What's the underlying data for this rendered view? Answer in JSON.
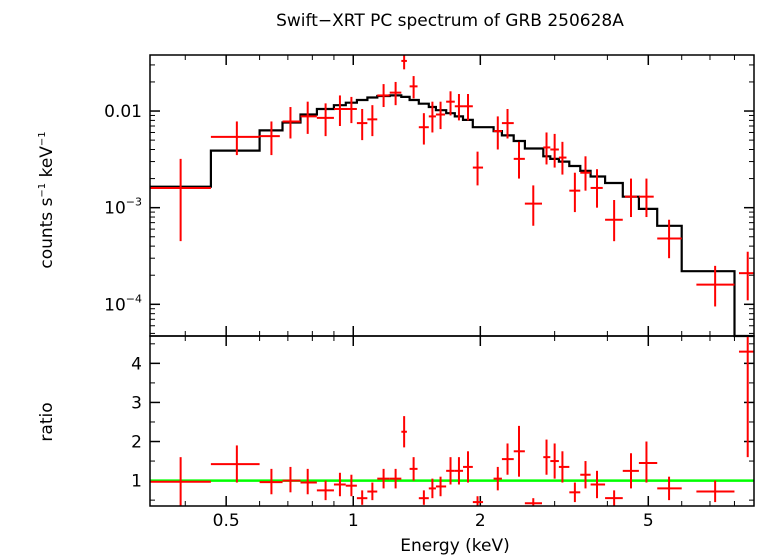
{
  "chart_data": {
    "type": "scatter",
    "title": "Swift−XRT PC spectrum of GRB 250628A",
    "xlabel": "Energy (keV)",
    "x_scale": "log",
    "xlim": [
      0.33,
      8.9
    ],
    "x_ticks": [
      {
        "value": 0.5,
        "label": "0.5"
      },
      {
        "value": 1,
        "label": "1"
      },
      {
        "value": 2,
        "label": "2"
      },
      {
        "value": 5,
        "label": "5"
      }
    ],
    "colors": {
      "data": "#ff0000",
      "model": "#000000",
      "unity": "#00ff00",
      "axes": "#000000"
    },
    "panels": [
      {
        "name": "spectrum",
        "ylabel_main": "counts s",
        "ylabel_exp1": "−1",
        "ylabel_mid": " keV",
        "ylabel_exp2": "−1",
        "y_scale": "log",
        "ylim": [
          4.7e-05,
          0.038
        ],
        "y_ticks": [
          {
            "value": 0.01,
            "label": "0.01"
          },
          {
            "value": 0.001,
            "label_base": "10",
            "label_exp": "−3"
          },
          {
            "value": 0.0001,
            "label_base": "10",
            "label_exp": "−4"
          }
        ],
        "data": [
          {
            "x": 0.39,
            "xlo": 0.33,
            "xhi": 0.46,
            "y": 0.0016,
            "ylo": 0.00045,
            "yhi": 0.0032
          },
          {
            "x": 0.53,
            "xlo": 0.46,
            "xhi": 0.6,
            "y": 0.0054,
            "ylo": 0.0035,
            "yhi": 0.0078
          },
          {
            "x": 0.64,
            "xlo": 0.6,
            "xhi": 0.67,
            "y": 0.0055,
            "ylo": 0.0035,
            "yhi": 0.0078
          },
          {
            "x": 0.71,
            "xlo": 0.68,
            "xhi": 0.75,
            "y": 0.0078,
            "ylo": 0.0052,
            "yhi": 0.011
          },
          {
            "x": 0.78,
            "xlo": 0.75,
            "xhi": 0.82,
            "y": 0.0088,
            "ylo": 0.0058,
            "yhi": 0.0125
          },
          {
            "x": 0.86,
            "xlo": 0.82,
            "xhi": 0.9,
            "y": 0.0085,
            "ylo": 0.0055,
            "yhi": 0.012
          },
          {
            "x": 0.93,
            "xlo": 0.9,
            "xhi": 0.97,
            "y": 0.0105,
            "ylo": 0.007,
            "yhi": 0.0145
          },
          {
            "x": 0.99,
            "xlo": 0.96,
            "xhi": 1.02,
            "y": 0.0105,
            "ylo": 0.0075,
            "yhi": 0.014
          },
          {
            "x": 1.05,
            "xlo": 1.02,
            "xhi": 1.08,
            "y": 0.0075,
            "ylo": 0.005,
            "yhi": 0.0105
          },
          {
            "x": 1.11,
            "xlo": 1.08,
            "xhi": 1.14,
            "y": 0.0082,
            "ylo": 0.0055,
            "yhi": 0.0115
          },
          {
            "x": 1.18,
            "xlo": 1.14,
            "xhi": 1.22,
            "y": 0.0145,
            "ylo": 0.011,
            "yhi": 0.019
          },
          {
            "x": 1.26,
            "xlo": 1.22,
            "xhi": 1.3,
            "y": 0.0155,
            "ylo": 0.0115,
            "yhi": 0.02
          },
          {
            "x": 1.32,
            "xlo": 1.3,
            "xhi": 1.34,
            "y": 0.033,
            "ylo": 0.027,
            "yhi": 0.038
          },
          {
            "x": 1.39,
            "xlo": 1.36,
            "xhi": 1.42,
            "y": 0.018,
            "ylo": 0.0135,
            "yhi": 0.023
          },
          {
            "x": 1.47,
            "xlo": 1.43,
            "xhi": 1.51,
            "y": 0.0068,
            "ylo": 0.0045,
            "yhi": 0.0095
          },
          {
            "x": 1.54,
            "xlo": 1.51,
            "xhi": 1.57,
            "y": 0.0088,
            "ylo": 0.006,
            "yhi": 0.0125
          },
          {
            "x": 1.61,
            "xlo": 1.57,
            "xhi": 1.65,
            "y": 0.0092,
            "ylo": 0.0065,
            "yhi": 0.0125
          },
          {
            "x": 1.7,
            "xlo": 1.66,
            "xhi": 1.74,
            "y": 0.0125,
            "ylo": 0.009,
            "yhi": 0.016
          },
          {
            "x": 1.78,
            "xlo": 1.74,
            "xhi": 1.82,
            "y": 0.0112,
            "ylo": 0.008,
            "yhi": 0.015
          },
          {
            "x": 1.87,
            "xlo": 1.82,
            "xhi": 1.92,
            "y": 0.0112,
            "ylo": 0.008,
            "yhi": 0.015
          },
          {
            "x": 1.97,
            "xlo": 1.92,
            "xhi": 2.03,
            "y": 0.0026,
            "ylo": 0.0017,
            "yhi": 0.0038
          },
          {
            "x": 2.2,
            "xlo": 2.15,
            "xhi": 2.25,
            "y": 0.0062,
            "ylo": 0.004,
            "yhi": 0.0088
          },
          {
            "x": 2.32,
            "xlo": 2.25,
            "xhi": 2.4,
            "y": 0.0075,
            "ylo": 0.0052,
            "yhi": 0.0105
          },
          {
            "x": 2.47,
            "xlo": 2.4,
            "xhi": 2.55,
            "y": 0.0032,
            "ylo": 0.002,
            "yhi": 0.0048
          },
          {
            "x": 2.67,
            "xlo": 2.55,
            "xhi": 2.8,
            "y": 0.0011,
            "ylo": 0.00065,
            "yhi": 0.0017
          },
          {
            "x": 2.87,
            "xlo": 2.82,
            "xhi": 2.93,
            "y": 0.0042,
            "ylo": 0.0028,
            "yhi": 0.006
          },
          {
            "x": 3.0,
            "xlo": 2.93,
            "xhi": 3.07,
            "y": 0.004,
            "ylo": 0.0026,
            "yhi": 0.0058
          },
          {
            "x": 3.13,
            "xlo": 3.07,
            "xhi": 3.2,
            "y": 0.0033,
            "ylo": 0.0022,
            "yhi": 0.0048
          },
          {
            "x": 3.35,
            "xlo": 3.25,
            "xhi": 3.45,
            "y": 0.0015,
            "ylo": 0.0009,
            "yhi": 0.0023
          },
          {
            "x": 3.55,
            "xlo": 3.45,
            "xhi": 3.65,
            "y": 0.0023,
            "ylo": 0.0015,
            "yhi": 0.0034
          },
          {
            "x": 3.78,
            "xlo": 3.65,
            "xhi": 3.9,
            "y": 0.0016,
            "ylo": 0.001,
            "yhi": 0.0025
          },
          {
            "x": 4.15,
            "xlo": 3.95,
            "xhi": 4.35,
            "y": 0.00075,
            "ylo": 0.00045,
            "yhi": 0.0012
          },
          {
            "x": 4.55,
            "xlo": 4.4,
            "xhi": 4.7,
            "y": 0.0013,
            "ylo": 0.0008,
            "yhi": 0.002
          },
          {
            "x": 4.95,
            "xlo": 4.75,
            "xhi": 5.15,
            "y": 0.0013,
            "ylo": 0.0008,
            "yhi": 0.002
          },
          {
            "x": 5.6,
            "xlo": 5.25,
            "xhi": 6.0,
            "y": 0.00048,
            "ylo": 0.0003,
            "yhi": 0.00075
          },
          {
            "x": 7.2,
            "xlo": 6.5,
            "xhi": 8.0,
            "y": 0.00016,
            "ylo": 9.5e-05,
            "yhi": 0.00025
          },
          {
            "x": 8.6,
            "xlo": 8.2,
            "xhi": 8.9,
            "y": 0.00021,
            "ylo": 0.00011,
            "yhi": 0.00035
          }
        ],
        "model_steps": [
          {
            "x0": 0.33,
            "x1": 0.46,
            "y": 0.00165
          },
          {
            "x0": 0.46,
            "x1": 0.6,
            "y": 0.0039
          },
          {
            "x0": 0.6,
            "x1": 0.68,
            "y": 0.0063
          },
          {
            "x0": 0.68,
            "x1": 0.75,
            "y": 0.0076
          },
          {
            "x0": 0.75,
            "x1": 0.82,
            "y": 0.0092
          },
          {
            "x0": 0.82,
            "x1": 0.9,
            "y": 0.0105
          },
          {
            "x0": 0.9,
            "x1": 0.96,
            "y": 0.0115
          },
          {
            "x0": 0.96,
            "x1": 1.02,
            "y": 0.0122
          },
          {
            "x0": 1.02,
            "x1": 1.08,
            "y": 0.013
          },
          {
            "x0": 1.08,
            "x1": 1.14,
            "y": 0.0138
          },
          {
            "x0": 1.14,
            "x1": 1.22,
            "y": 0.0143
          },
          {
            "x0": 1.22,
            "x1": 1.3,
            "y": 0.0145
          },
          {
            "x0": 1.3,
            "x1": 1.36,
            "y": 0.014
          },
          {
            "x0": 1.36,
            "x1": 1.43,
            "y": 0.013
          },
          {
            "x0": 1.43,
            "x1": 1.51,
            "y": 0.0119
          },
          {
            "x0": 1.51,
            "x1": 1.57,
            "y": 0.011
          },
          {
            "x0": 1.57,
            "x1": 1.66,
            "y": 0.0102
          },
          {
            "x0": 1.66,
            "x1": 1.74,
            "y": 0.0095
          },
          {
            "x0": 1.74,
            "x1": 1.82,
            "y": 0.0088
          },
          {
            "x0": 1.82,
            "x1": 1.92,
            "y": 0.0081
          },
          {
            "x0": 1.92,
            "x1": 2.15,
            "y": 0.0068
          },
          {
            "x0": 2.15,
            "x1": 2.25,
            "y": 0.0062
          },
          {
            "x0": 2.25,
            "x1": 2.4,
            "y": 0.0056
          },
          {
            "x0": 2.4,
            "x1": 2.55,
            "y": 0.0049
          },
          {
            "x0": 2.55,
            "x1": 2.82,
            "y": 0.0041
          },
          {
            "x0": 2.82,
            "x1": 2.93,
            "y": 0.0034
          },
          {
            "x0": 2.93,
            "x1": 3.07,
            "y": 0.0032
          },
          {
            "x0": 3.07,
            "x1": 3.25,
            "y": 0.003
          },
          {
            "x0": 3.25,
            "x1": 3.45,
            "y": 0.0027
          },
          {
            "x0": 3.45,
            "x1": 3.65,
            "y": 0.0024
          },
          {
            "x0": 3.65,
            "x1": 3.95,
            "y": 0.0021
          },
          {
            "x0": 3.95,
            "x1": 4.35,
            "y": 0.0018
          },
          {
            "x0": 4.35,
            "x1": 4.75,
            "y": 0.0013
          },
          {
            "x0": 4.75,
            "x1": 5.25,
            "y": 0.00097
          },
          {
            "x0": 5.25,
            "x1": 6.0,
            "y": 0.00065
          },
          {
            "x0": 6.0,
            "x1": 8.0,
            "y": 0.00022
          },
          {
            "x0": 8.0,
            "x1": 8.9,
            "y": 4.7e-05
          }
        ]
      },
      {
        "name": "ratio",
        "ylabel": "ratio",
        "y_scale": "linear",
        "ylim": [
          0.35,
          4.7
        ],
        "y_ticks": [
          {
            "value": 1,
            "label": "1"
          },
          {
            "value": 2,
            "label": "2"
          },
          {
            "value": 3,
            "label": "3"
          },
          {
            "value": 4,
            "label": "4"
          }
        ],
        "reference_line": 1,
        "data": [
          {
            "x": 0.39,
            "xlo": 0.33,
            "xhi": 0.46,
            "y": 0.97,
            "ylo": 0.35,
            "yhi": 1.6
          },
          {
            "x": 0.53,
            "xlo": 0.46,
            "xhi": 0.6,
            "y": 1.42,
            "ylo": 0.95,
            "yhi": 1.9
          },
          {
            "x": 0.64,
            "xlo": 0.6,
            "xhi": 0.68,
            "y": 0.96,
            "ylo": 0.65,
            "yhi": 1.3
          },
          {
            "x": 0.71,
            "xlo": 0.68,
            "xhi": 0.75,
            "y": 1.0,
            "ylo": 0.7,
            "yhi": 1.35
          },
          {
            "x": 0.78,
            "xlo": 0.75,
            "xhi": 0.82,
            "y": 0.95,
            "ylo": 0.65,
            "yhi": 1.3
          },
          {
            "x": 0.86,
            "xlo": 0.82,
            "xhi": 0.9,
            "y": 0.75,
            "ylo": 0.5,
            "yhi": 1.0
          },
          {
            "x": 0.93,
            "xlo": 0.9,
            "xhi": 0.96,
            "y": 0.9,
            "ylo": 0.6,
            "yhi": 1.2
          },
          {
            "x": 0.99,
            "xlo": 0.96,
            "xhi": 1.02,
            "y": 0.87,
            "ylo": 0.6,
            "yhi": 1.15
          },
          {
            "x": 1.05,
            "xlo": 1.02,
            "xhi": 1.08,
            "y": 0.55,
            "ylo": 0.38,
            "yhi": 0.75
          },
          {
            "x": 1.11,
            "xlo": 1.08,
            "xhi": 1.14,
            "y": 0.72,
            "ylo": 0.5,
            "yhi": 0.95
          },
          {
            "x": 1.18,
            "xlo": 1.14,
            "xhi": 1.22,
            "y": 1.05,
            "ylo": 0.8,
            "yhi": 1.3
          },
          {
            "x": 1.26,
            "xlo": 1.22,
            "xhi": 1.3,
            "y": 1.05,
            "ylo": 0.8,
            "yhi": 1.3
          },
          {
            "x": 1.32,
            "xlo": 1.3,
            "xhi": 1.34,
            "y": 2.25,
            "ylo": 1.85,
            "yhi": 2.65
          },
          {
            "x": 1.39,
            "xlo": 1.36,
            "xhi": 1.42,
            "y": 1.3,
            "ylo": 1.0,
            "yhi": 1.6
          },
          {
            "x": 1.47,
            "xlo": 1.43,
            "xhi": 1.51,
            "y": 0.55,
            "ylo": 0.38,
            "yhi": 0.75
          },
          {
            "x": 1.54,
            "xlo": 1.51,
            "xhi": 1.57,
            "y": 0.8,
            "ylo": 0.55,
            "yhi": 1.05
          },
          {
            "x": 1.61,
            "xlo": 1.57,
            "xhi": 1.66,
            "y": 0.85,
            "ylo": 0.6,
            "yhi": 1.1
          },
          {
            "x": 1.7,
            "xlo": 1.66,
            "xhi": 1.74,
            "y": 1.25,
            "ylo": 0.9,
            "yhi": 1.6
          },
          {
            "x": 1.78,
            "xlo": 1.74,
            "xhi": 1.82,
            "y": 1.25,
            "ylo": 0.9,
            "yhi": 1.6
          },
          {
            "x": 1.87,
            "xlo": 1.82,
            "xhi": 1.92,
            "y": 1.35,
            "ylo": 0.95,
            "yhi": 1.75
          },
          {
            "x": 1.97,
            "xlo": 1.92,
            "xhi": 2.03,
            "y": 0.45,
            "ylo": 0.3,
            "yhi": 0.6
          },
          {
            "x": 2.2,
            "xlo": 2.15,
            "xhi": 2.25,
            "y": 1.05,
            "ylo": 0.75,
            "yhi": 1.35
          },
          {
            "x": 2.32,
            "xlo": 2.25,
            "xhi": 2.4,
            "y": 1.55,
            "ylo": 1.15,
            "yhi": 1.95
          },
          {
            "x": 2.47,
            "xlo": 2.4,
            "xhi": 2.55,
            "y": 1.75,
            "ylo": 1.1,
            "yhi": 2.4
          },
          {
            "x": 2.67,
            "xlo": 2.55,
            "xhi": 2.8,
            "y": 0.42,
            "ylo": 0.3,
            "yhi": 0.55
          },
          {
            "x": 2.87,
            "xlo": 2.82,
            "xhi": 2.93,
            "y": 1.6,
            "ylo": 1.15,
            "yhi": 2.05
          },
          {
            "x": 3.0,
            "xlo": 2.93,
            "xhi": 3.07,
            "y": 1.5,
            "ylo": 1.05,
            "yhi": 1.95
          },
          {
            "x": 3.13,
            "xlo": 3.07,
            "xhi": 3.25,
            "y": 1.35,
            "ylo": 0.95,
            "yhi": 1.75
          },
          {
            "x": 3.35,
            "xlo": 3.25,
            "xhi": 3.45,
            "y": 0.7,
            "ylo": 0.45,
            "yhi": 0.95
          },
          {
            "x": 3.55,
            "xlo": 3.45,
            "xhi": 3.65,
            "y": 1.15,
            "ylo": 0.8,
            "yhi": 1.5
          },
          {
            "x": 3.78,
            "xlo": 3.65,
            "xhi": 3.95,
            "y": 0.9,
            "ylo": 0.55,
            "yhi": 1.25
          },
          {
            "x": 4.15,
            "xlo": 3.95,
            "xhi": 4.35,
            "y": 0.55,
            "ylo": 0.35,
            "yhi": 0.75
          },
          {
            "x": 4.55,
            "xlo": 4.35,
            "xhi": 4.75,
            "y": 1.25,
            "ylo": 0.8,
            "yhi": 1.7
          },
          {
            "x": 4.95,
            "xlo": 4.75,
            "xhi": 5.25,
            "y": 1.45,
            "ylo": 0.95,
            "yhi": 2.0
          },
          {
            "x": 5.6,
            "xlo": 5.25,
            "xhi": 6.0,
            "y": 0.8,
            "ylo": 0.5,
            "yhi": 1.1
          },
          {
            "x": 7.2,
            "xlo": 6.5,
            "xhi": 8.0,
            "y": 0.72,
            "ylo": 0.45,
            "yhi": 1.0
          },
          {
            "x": 8.6,
            "xlo": 8.2,
            "xhi": 8.9,
            "y": 4.3,
            "ylo": 1.6,
            "yhi": 4.7
          }
        ]
      }
    ]
  }
}
